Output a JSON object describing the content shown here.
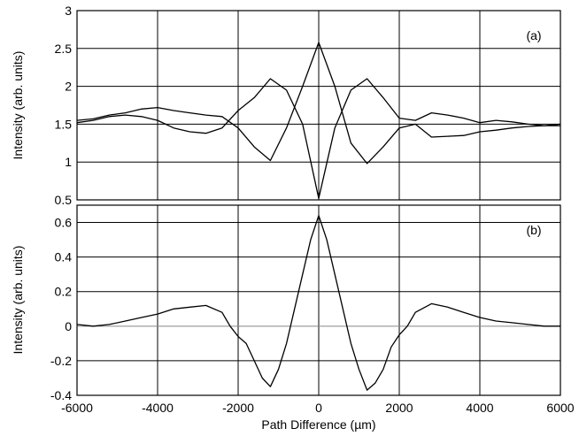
{
  "chart_data": [
    {
      "type": "line",
      "panel_label": "(a)",
      "xlabel": "",
      "ylabel": "Intensity (arb. units)",
      "xlim": [
        -6000,
        6000
      ],
      "ylim": [
        0.5,
        3
      ],
      "x_ticks": [
        -6000,
        -4000,
        -2000,
        0,
        2000,
        4000,
        6000
      ],
      "y_ticks": [
        0.5,
        1,
        1.5,
        2,
        2.5,
        3
      ],
      "y_tick_labels": [
        "0.5",
        "1",
        "1.5",
        "2",
        "2.5",
        "3"
      ],
      "grid": true,
      "series": [
        {
          "x": [
            -6000,
            -5600,
            -5200,
            -4800,
            -4400,
            -4000,
            -3600,
            -3200,
            -2800,
            -2400,
            -2000,
            -1600,
            -1200,
            -800,
            -400,
            0,
            400,
            800,
            1200,
            1600,
            2000,
            2400,
            2800,
            3200,
            3600,
            4000,
            4400,
            4800,
            5200,
            5600,
            6000
          ],
          "values": [
            1.52,
            1.55,
            1.6,
            1.62,
            1.6,
            1.55,
            1.45,
            1.4,
            1.38,
            1.45,
            1.68,
            1.85,
            2.1,
            1.95,
            1.5,
            0.52,
            1.45,
            1.95,
            2.1,
            1.85,
            1.58,
            1.55,
            1.65,
            1.62,
            1.58,
            1.52,
            1.55,
            1.53,
            1.5,
            1.48,
            1.48
          ]
        },
        {
          "x": [
            -6000,
            -5600,
            -5200,
            -4800,
            -4400,
            -4000,
            -3600,
            -3200,
            -2800,
            -2400,
            -2000,
            -1600,
            -1200,
            -800,
            -400,
            0,
            400,
            800,
            1200,
            1600,
            2000,
            2400,
            2800,
            3200,
            3600,
            4000,
            4400,
            4800,
            5200,
            5600,
            6000
          ],
          "values": [
            1.55,
            1.57,
            1.62,
            1.65,
            1.7,
            1.72,
            1.68,
            1.65,
            1.62,
            1.6,
            1.45,
            1.2,
            1.02,
            1.45,
            2.0,
            2.58,
            2.0,
            1.25,
            0.98,
            1.2,
            1.45,
            1.5,
            1.33,
            1.34,
            1.35,
            1.4,
            1.42,
            1.45,
            1.47,
            1.48,
            1.5
          ]
        }
      ]
    },
    {
      "type": "line",
      "panel_label": "(b)",
      "xlabel": "Path Difference (µm)",
      "ylabel": "Intensity (arb. units)",
      "xlim": [
        -6000,
        6000
      ],
      "ylim": [
        -0.4,
        0.7
      ],
      "x_ticks": [
        -6000,
        -4000,
        -2000,
        0,
        2000,
        4000,
        6000
      ],
      "x_tick_labels": [
        "-6000",
        "-4000",
        "-2000",
        "0",
        "2000",
        "4000",
        "6000"
      ],
      "y_ticks": [
        -0.4,
        -0.2,
        0,
        0.2,
        0.4,
        0.6
      ],
      "y_tick_labels": [
        "-0.4",
        "-0.2",
        "0",
        "0.2",
        "0.4",
        "0.6"
      ],
      "grid": true,
      "series": [
        {
          "x": [
            -6000,
            -5600,
            -5200,
            -4800,
            -4400,
            -4000,
            -3600,
            -3200,
            -2800,
            -2400,
            -2200,
            -2000,
            -1800,
            -1600,
            -1400,
            -1200,
            -1000,
            -800,
            -600,
            -400,
            -200,
            0,
            200,
            400,
            600,
            800,
            1000,
            1200,
            1400,
            1600,
            1800,
            2000,
            2200,
            2400,
            2800,
            3200,
            3600,
            4000,
            4400,
            4800,
            5200,
            5600,
            6000
          ],
          "values": [
            0.01,
            0.0,
            0.01,
            0.03,
            0.05,
            0.07,
            0.1,
            0.11,
            0.12,
            0.08,
            0.0,
            -0.06,
            -0.1,
            -0.2,
            -0.3,
            -0.35,
            -0.25,
            -0.1,
            0.1,
            0.3,
            0.5,
            0.64,
            0.5,
            0.3,
            0.1,
            -0.1,
            -0.25,
            -0.37,
            -0.33,
            -0.25,
            -0.12,
            -0.05,
            0.0,
            0.08,
            0.13,
            0.11,
            0.08,
            0.05,
            0.03,
            0.02,
            0.01,
            0.0,
            0.0
          ]
        }
      ]
    }
  ]
}
